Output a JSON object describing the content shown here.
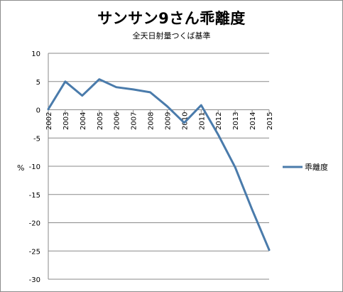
{
  "chart_data": {
    "type": "line",
    "title": "サンサン9さん乖離度",
    "subtitle": "全天日射量つくば基準",
    "ylabel": "%",
    "xlabel": "",
    "ylim": [
      -30,
      10
    ],
    "yticks": [
      10,
      5,
      0,
      -5,
      -10,
      -15,
      -20,
      -25,
      -30
    ],
    "grid": true,
    "legend_position": "right",
    "color": "#4a7bab",
    "categories": [
      "2002",
      "2003",
      "2004",
      "2005",
      "2006",
      "2007",
      "2008",
      "2009",
      "2010",
      "2011",
      "2012",
      "2013",
      "2014",
      "2015"
    ],
    "series": [
      {
        "name": "乖離度",
        "values": [
          0.1,
          5.0,
          2.5,
          5.4,
          4.0,
          3.6,
          3.1,
          0.6,
          -2.3,
          0.8,
          -4.4,
          -10.2,
          -17.7,
          -24.8
        ]
      }
    ]
  }
}
